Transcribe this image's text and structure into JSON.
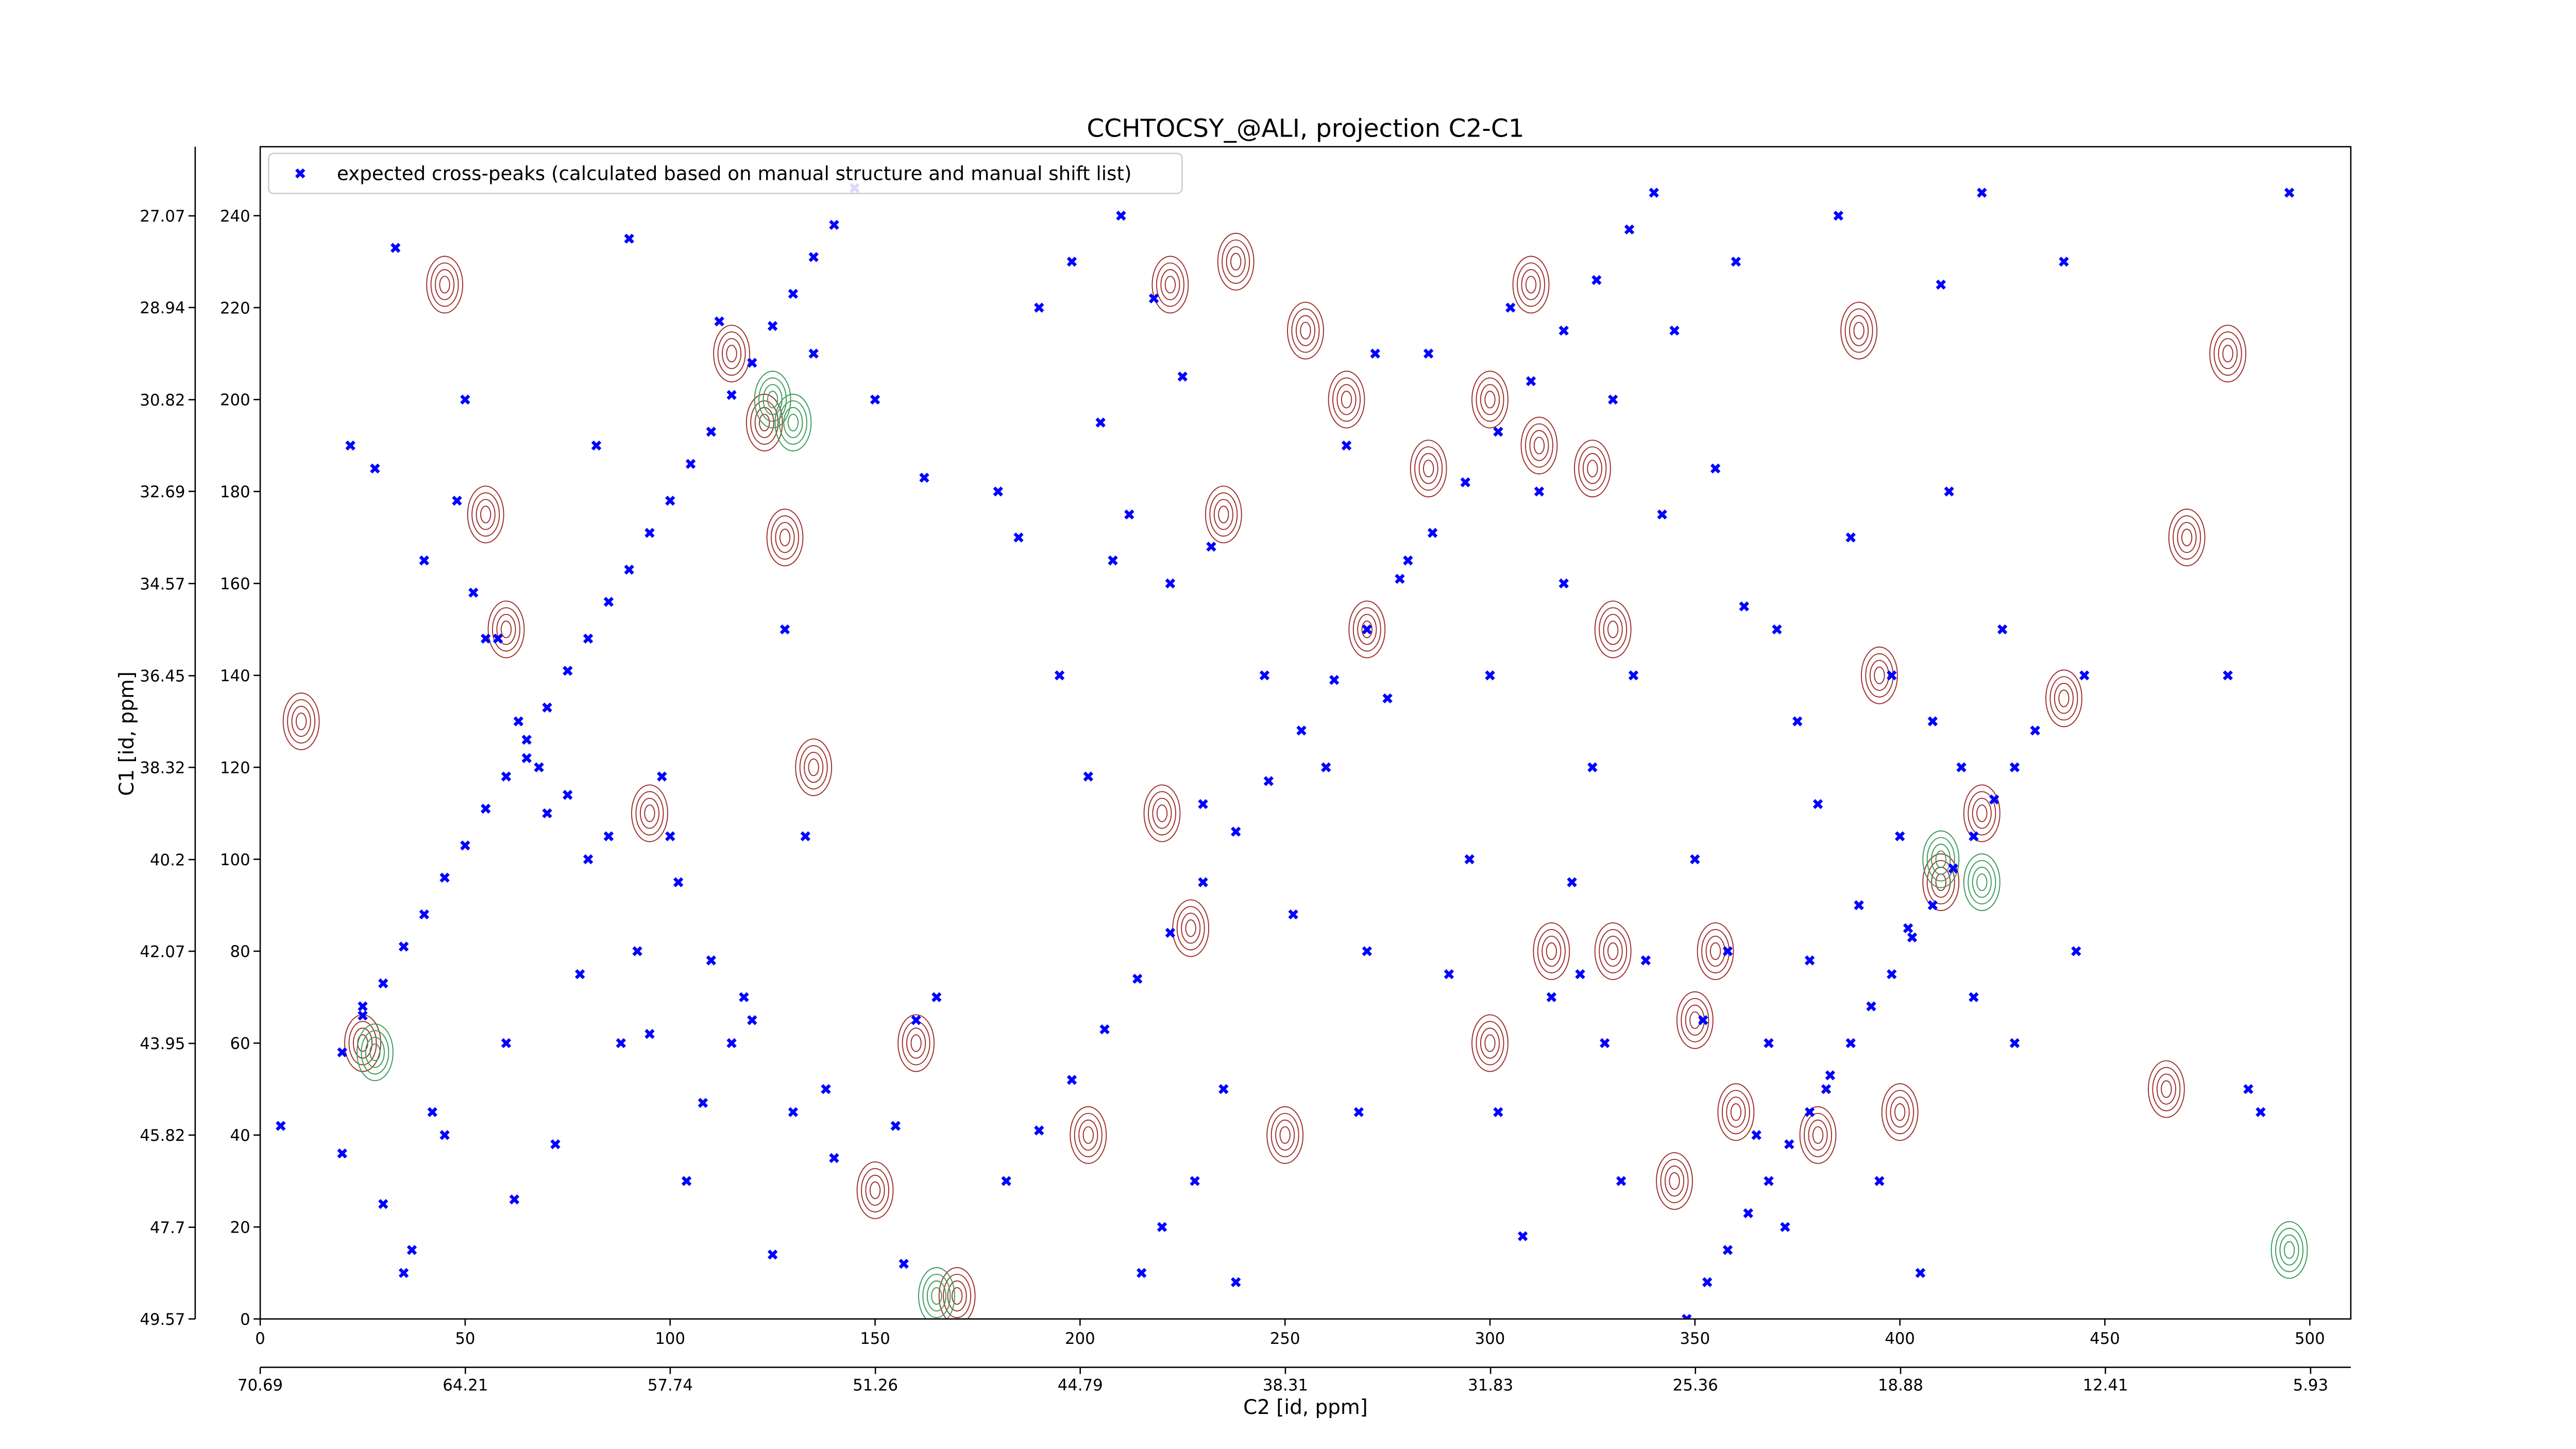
{
  "chart_data": {
    "type": "scatter",
    "title": "CCHTOCSY_@ALI, projection C2-C1",
    "xlabel": "C2 [id, ppm]",
    "ylabel": "C1 [id, ppm]",
    "xlim": [
      0,
      510
    ],
    "ylim": [
      0,
      255
    ],
    "xticks": [
      0,
      50,
      100,
      150,
      200,
      250,
      300,
      350,
      400,
      450,
      500
    ],
    "yticks": [
      0,
      20,
      40,
      60,
      80,
      100,
      120,
      140,
      160,
      180,
      200,
      220,
      240
    ],
    "x2lim": [
      70.69,
      4.66
    ],
    "x2ticks": [
      70.69,
      64.21,
      57.74,
      51.26,
      44.79,
      38.31,
      31.83,
      25.36,
      18.88,
      12.41,
      5.93
    ],
    "y2lim": [
      49.57,
      25.66
    ],
    "y2ticks": [
      49.57,
      47.7,
      45.82,
      43.95,
      42.07,
      40.2,
      38.32,
      36.45,
      34.57,
      32.69,
      30.82,
      28.94,
      27.07
    ],
    "legend": "upper left",
    "series": [
      {
        "name": "expected cross-peaks (calculated based on manual structure and manual shift list)",
        "color": "#0000ff",
        "x": [
          20,
          25,
          30,
          35,
          40,
          45,
          50,
          55,
          60,
          65,
          70,
          75,
          80,
          85,
          90,
          95,
          100,
          105,
          110,
          115,
          120,
          125,
          130,
          135,
          140,
          145,
          182,
          190,
          198,
          206,
          214,
          222,
          230,
          238,
          246,
          254,
          262,
          270,
          278,
          286,
          294,
          302,
          310,
          318,
          326,
          334,
          340,
          348,
          353,
          358,
          363,
          368,
          373,
          378,
          383,
          388,
          393,
          398,
          403,
          408,
          413,
          418,
          423,
          428,
          433,
          5,
          20,
          22,
          25,
          28,
          30,
          33,
          35,
          37,
          40,
          42,
          45,
          48,
          50,
          52,
          55,
          58,
          60,
          62,
          63,
          65,
          68,
          70,
          72,
          75,
          78,
          80,
          82,
          85,
          88,
          90,
          92,
          95,
          98,
          100,
          102,
          104,
          108,
          110,
          112,
          115,
          118,
          120,
          125,
          128,
          130,
          133,
          135,
          138,
          140,
          150,
          155,
          157,
          160,
          162,
          165,
          180,
          185,
          190,
          195,
          198,
          202,
          205,
          208,
          210,
          212,
          215,
          218,
          220,
          222,
          225,
          228,
          230,
          232,
          235,
          238,
          245,
          252,
          260,
          265,
          268,
          270,
          272,
          275,
          280,
          285,
          290,
          295,
          300,
          302,
          305,
          308,
          312,
          315,
          318,
          320,
          322,
          325,
          328,
          330,
          332,
          335,
          338,
          342,
          345,
          350,
          352,
          355,
          358,
          360,
          362,
          365,
          368,
          370,
          372,
          375,
          378,
          380,
          382,
          385,
          388,
          390,
          395,
          398,
          400,
          402,
          405,
          408,
          410,
          412,
          415,
          418,
          420,
          425,
          428,
          440,
          443,
          445,
          480,
          485,
          488,
          495
        ],
        "values": [
          58,
          66,
          73,
          81,
          88,
          96,
          103,
          111,
          118,
          126,
          133,
          141,
          148,
          156,
          163,
          171,
          178,
          186,
          193,
          201,
          208,
          216,
          223,
          231,
          238,
          246,
          30,
          41,
          52,
          63,
          74,
          84,
          95,
          106,
          117,
          128,
          139,
          150,
          161,
          171,
          182,
          193,
          204,
          215,
          226,
          237,
          245,
          0,
          8,
          15,
          23,
          30,
          38,
          45,
          53,
          60,
          68,
          75,
          83,
          90,
          98,
          105,
          113,
          120,
          128,
          42,
          36,
          190,
          68,
          185,
          25,
          233,
          10,
          15,
          165,
          45,
          40,
          178,
          200,
          158,
          148,
          148,
          60,
          26,
          130,
          122,
          120,
          110,
          38,
          114,
          75,
          100,
          190,
          105,
          60,
          235,
          80,
          62,
          118,
          105,
          95,
          30,
          47,
          78,
          217,
          60,
          70,
          65,
          14,
          150,
          45,
          105,
          210,
          50,
          35,
          200,
          42,
          12,
          65,
          183,
          70,
          180,
          170,
          220,
          140,
          230,
          118,
          195,
          165,
          240,
          175,
          10,
          222,
          20,
          160,
          205,
          30,
          112,
          168,
          50,
          8,
          140,
          88,
          120,
          190,
          45,
          80,
          210,
          135,
          165,
          210,
          75,
          100,
          140,
          45,
          220,
          18,
          180,
          70,
          160,
          95,
          75,
          120,
          60,
          200,
          30,
          140,
          78,
          175,
          215,
          100,
          65,
          185,
          80,
          230,
          155,
          40,
          60,
          150,
          20,
          130,
          78,
          112,
          50,
          240,
          170,
          90,
          30,
          140,
          105,
          85,
          10,
          130,
          225,
          180,
          120,
          70,
          245,
          150,
          60,
          230,
          80,
          140,
          140,
          50,
          45,
          245
        ]
      }
    ],
    "contours": {
      "color": "#a0302a",
      "x": [
        25,
        115,
        123,
        128,
        55,
        60,
        95,
        135,
        160,
        170,
        202,
        220,
        222,
        227,
        238,
        235,
        255,
        265,
        285,
        300,
        310,
        312,
        325,
        330,
        315,
        300,
        330,
        350,
        355,
        345,
        360,
        380,
        400,
        410,
        420,
        440,
        465,
        470,
        480,
        390,
        395,
        270,
        250,
        10,
        45,
        150
      ],
      "y": [
        60,
        210,
        195,
        170,
        175,
        150,
        110,
        120,
        60,
        5,
        40,
        110,
        225,
        85,
        230,
        175,
        215,
        200,
        185,
        200,
        225,
        190,
        185,
        150,
        80,
        60,
        80,
        65,
        80,
        30,
        45,
        40,
        45,
        95,
        110,
        135,
        50,
        170,
        210,
        215,
        140,
        150,
        40,
        130,
        225,
        28
      ]
    },
    "negative_contours": {
      "color": "#3a9a5a",
      "x": [
        125,
        130,
        420,
        410,
        28,
        495,
        165
      ],
      "y": [
        200,
        195,
        95,
        100,
        58,
        15,
        5
      ]
    }
  }
}
